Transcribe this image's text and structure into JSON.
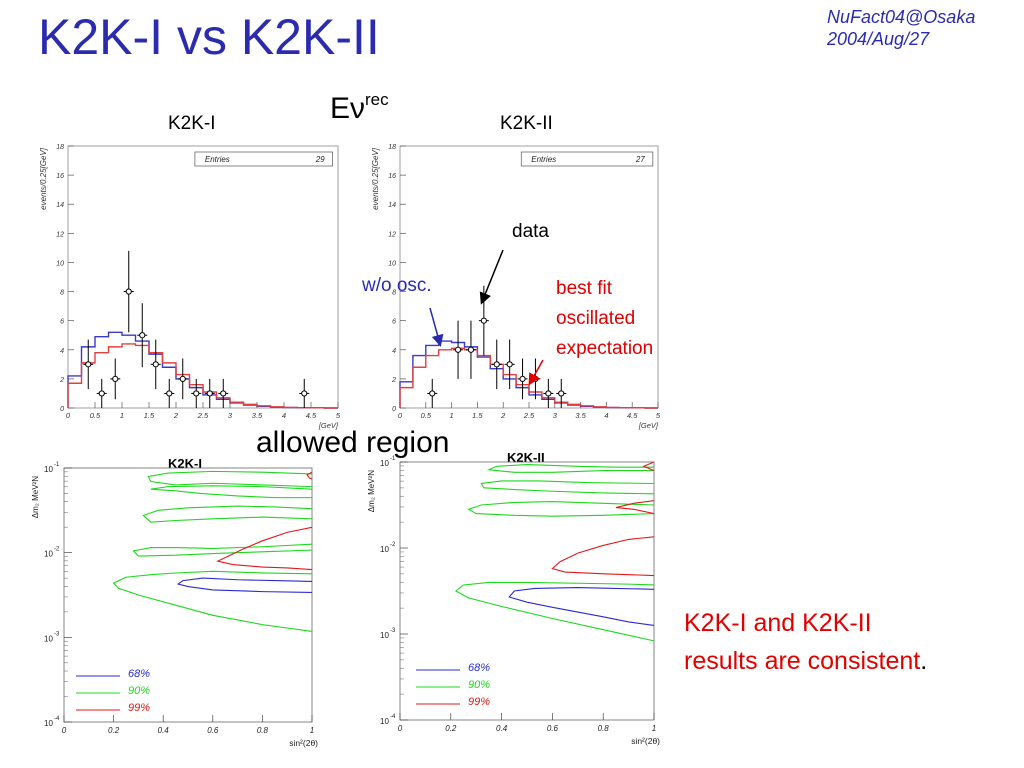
{
  "slide": {
    "title": "K2K-I vs K2K-II",
    "conference": "NuFact04@Osaka",
    "date": "2004/Aug/27",
    "energy_label": "Eν",
    "energy_sup": "rec",
    "allowed_region_label": "allowed region",
    "annotations": {
      "data": "data",
      "wo_osc": "w/o osc.",
      "best_fit_lines": [
        "best fit",
        "oscillated",
        "expectation"
      ]
    },
    "conclusion_lines": [
      "K2K-I and K2K-II",
      "results are consistent"
    ],
    "conclusion_end": "."
  },
  "colors": {
    "title": "#2b2bb0",
    "no_osc": "#3a3ac8",
    "best_fit": "#e04040",
    "c68": "#2a2ad0",
    "c90": "#1ed81e",
    "c99": "#e01a1a",
    "conclusion": "#e00000"
  },
  "chart_data": [
    {
      "type": "line",
      "panel": "K2K-I",
      "title": "K2K-I",
      "xlabel": "[GeV]",
      "ylabel": "events/0.25[GeV]",
      "xlim": [
        0,
        5
      ],
      "ylim": [
        0,
        18
      ],
      "xticks": [
        "0",
        "0.5",
        "1",
        "1.5",
        "2",
        "2.5",
        "3",
        "3.5",
        "4",
        "4.5",
        "5"
      ],
      "yticks": [
        "0",
        "2",
        "4",
        "6",
        "8",
        "10",
        "12",
        "14",
        "16",
        "18"
      ],
      "stat_label": "Entries",
      "stat_value": "29",
      "bin_edges": [
        0,
        0.25,
        0.5,
        0.75,
        1,
        1.25,
        1.5,
        1.75,
        2,
        2.25,
        2.5,
        2.75,
        3,
        3.25,
        3.5,
        3.75,
        4,
        4.25,
        4.5,
        4.75,
        5
      ],
      "series": [
        {
          "role": "no_osc",
          "values": [
            2.2,
            4.2,
            4.9,
            5.2,
            5.0,
            4.6,
            3.7,
            2.8,
            2.0,
            1.4,
            0.9,
            0.6,
            0.35,
            0.2,
            0.12,
            0.06,
            0.03,
            0.02,
            0.01,
            0.0
          ]
        },
        {
          "role": "best_fit",
          "values": [
            1.7,
            3.1,
            3.8,
            4.2,
            4.4,
            4.3,
            3.8,
            3.1,
            2.3,
            1.6,
            1.1,
            0.7,
            0.4,
            0.25,
            0.15,
            0.08,
            0.04,
            0.02,
            0.01,
            0.0
          ]
        }
      ],
      "data_points": [
        {
          "x": 0.375,
          "y": 3,
          "err": 1.7
        },
        {
          "x": 0.625,
          "y": 1,
          "err": 1.0
        },
        {
          "x": 0.875,
          "y": 2,
          "err": 1.4
        },
        {
          "x": 1.125,
          "y": 8,
          "err": 2.8
        },
        {
          "x": 1.375,
          "y": 5,
          "err": 2.2
        },
        {
          "x": 1.625,
          "y": 3,
          "err": 1.7
        },
        {
          "x": 1.875,
          "y": 1,
          "err": 1.0
        },
        {
          "x": 2.125,
          "y": 2,
          "err": 1.4
        },
        {
          "x": 2.375,
          "y": 1,
          "err": 1.0
        },
        {
          "x": 2.625,
          "y": 1,
          "err": 1.0
        },
        {
          "x": 2.875,
          "y": 1,
          "err": 1.0
        },
        {
          "x": 4.375,
          "y": 1,
          "err": 1.0
        }
      ]
    },
    {
      "type": "line",
      "panel": "K2K-II",
      "title": "K2K-II",
      "xlabel": "[GeV]",
      "ylabel": "events/0.25[GeV]",
      "xlim": [
        0,
        5
      ],
      "ylim": [
        0,
        18
      ],
      "xticks": [
        "0",
        "0.5",
        "1",
        "1.5",
        "2",
        "2.5",
        "3",
        "3.5",
        "4",
        "4.5",
        "5"
      ],
      "yticks": [
        "0",
        "2",
        "4",
        "6",
        "8",
        "10",
        "12",
        "14",
        "16",
        "18"
      ],
      "stat_label": "Entries",
      "stat_value": "27",
      "bin_edges": [
        0,
        0.25,
        0.5,
        0.75,
        1,
        1.25,
        1.5,
        1.75,
        2,
        2.25,
        2.5,
        2.75,
        3,
        3.25,
        3.5,
        3.75,
        4,
        4.25,
        4.5,
        4.75,
        5
      ],
      "series": [
        {
          "role": "no_osc",
          "values": [
            1.8,
            3.6,
            4.3,
            4.6,
            4.5,
            4.2,
            3.5,
            2.7,
            2.0,
            1.4,
            0.9,
            0.6,
            0.35,
            0.2,
            0.12,
            0.06,
            0.03,
            0.02,
            0.01,
            0.0
          ]
        },
        {
          "role": "best_fit",
          "values": [
            1.4,
            2.8,
            3.6,
            4.0,
            4.1,
            4.0,
            3.6,
            3.0,
            2.3,
            1.6,
            1.1,
            0.7,
            0.4,
            0.25,
            0.15,
            0.08,
            0.04,
            0.02,
            0.01,
            0.0
          ]
        }
      ],
      "data_points": [
        {
          "x": 0.625,
          "y": 1,
          "err": 1.0
        },
        {
          "x": 1.125,
          "y": 4,
          "err": 2.0
        },
        {
          "x": 1.375,
          "y": 4,
          "err": 2.0
        },
        {
          "x": 1.625,
          "y": 6,
          "err": 2.4
        },
        {
          "x": 1.875,
          "y": 3,
          "err": 1.7
        },
        {
          "x": 2.125,
          "y": 3,
          "err": 1.7
        },
        {
          "x": 2.375,
          "y": 2,
          "err": 1.4
        },
        {
          "x": 2.625,
          "y": 2,
          "err": 1.4
        },
        {
          "x": 2.875,
          "y": 1,
          "err": 1.0
        },
        {
          "x": 3.125,
          "y": 1,
          "err": 1.0
        }
      ]
    },
    {
      "type": "contour",
      "panel": "K2K-I allowed region",
      "title": "K2K-I",
      "xlabel": "sin²(2θ)",
      "ylabel": "Δm₂ MeV²N",
      "xlim": [
        0,
        1
      ],
      "ylim_log10": [
        -4,
        -1
      ],
      "xticks": [
        "0",
        "0.2",
        "0.4",
        "0.6",
        "0.8",
        "1"
      ],
      "yticks": [
        {
          "base": "10",
          "exp": "-1"
        },
        {
          "base": "10",
          "exp": "-2"
        },
        {
          "base": "10",
          "exp": "-3"
        },
        {
          "base": "10",
          "exp": "-4"
        }
      ],
      "legend": [
        {
          "label": "68%",
          "level": "c68"
        },
        {
          "label": "90%",
          "level": "c90"
        },
        {
          "label": "99%",
          "level": "c99"
        }
      ],
      "contours": [
        {
          "level": "c68",
          "points": [
            [
              1.0,
              -2.47
            ],
            [
              0.8,
              -2.46
            ],
            [
              0.6,
              -2.44
            ],
            [
              0.5,
              -2.4
            ],
            [
              0.46,
              -2.37
            ],
            [
              0.48,
              -2.33
            ],
            [
              0.56,
              -2.3
            ],
            [
              0.7,
              -2.32
            ],
            [
              0.85,
              -2.33
            ],
            [
              1.0,
              -2.34
            ]
          ]
        },
        {
          "level": "c90",
          "points": [
            [
              1.0,
              -2.93
            ],
            [
              0.8,
              -2.85
            ],
            [
              0.6,
              -2.74
            ],
            [
              0.45,
              -2.62
            ],
            [
              0.3,
              -2.5
            ],
            [
              0.22,
              -2.42
            ],
            [
              0.2,
              -2.36
            ],
            [
              0.25,
              -2.29
            ],
            [
              0.35,
              -2.26
            ],
            [
              0.45,
              -2.24
            ],
            [
              0.6,
              -2.22
            ],
            [
              0.8,
              -2.24
            ],
            [
              1.0,
              -2.25
            ]
          ]
        },
        {
          "level": "c90",
          "points": [
            [
              1.0,
              -1.97
            ],
            [
              0.8,
              -1.99
            ],
            [
              0.6,
              -2.01
            ],
            [
              0.45,
              -2.03
            ],
            [
              0.3,
              -2.04
            ],
            [
              0.28,
              -1.98
            ],
            [
              0.35,
              -1.94
            ],
            [
              0.45,
              -1.94
            ],
            [
              0.6,
              -1.95
            ],
            [
              0.8,
              -1.93
            ],
            [
              1.0,
              -1.9
            ]
          ]
        },
        {
          "level": "c90",
          "points": [
            [
              1.0,
              -1.6
            ],
            [
              0.8,
              -1.58
            ],
            [
              0.6,
              -1.6
            ],
            [
              0.45,
              -1.62
            ],
            [
              0.35,
              -1.64
            ],
            [
              0.32,
              -1.56
            ],
            [
              0.38,
              -1.5
            ],
            [
              0.5,
              -1.47
            ],
            [
              0.7,
              -1.45
            ],
            [
              0.85,
              -1.46
            ],
            [
              1.0,
              -1.48
            ]
          ]
        },
        {
          "level": "c90",
          "points": [
            [
              1.0,
              -1.22
            ],
            [
              0.8,
              -1.2
            ],
            [
              0.6,
              -1.18
            ],
            [
              0.45,
              -1.2
            ],
            [
              0.35,
              -1.16
            ],
            [
              0.34,
              -1.1
            ],
            [
              0.42,
              -1.06
            ],
            [
              0.6,
              -1.04
            ],
            [
              0.8,
              -1.05
            ],
            [
              1.0,
              -1.07
            ]
          ]
        },
        {
          "level": "c90",
          "points": [
            [
              1.0,
              -1.35
            ],
            [
              0.85,
              -1.35
            ],
            [
              0.7,
              -1.33
            ],
            [
              0.55,
              -1.3
            ],
            [
              0.45,
              -1.27
            ],
            [
              0.35,
              -1.25
            ],
            [
              0.42,
              -1.22
            ],
            [
              0.6,
              -1.21
            ],
            [
              0.8,
              -1.22
            ],
            [
              1.0,
              -1.25
            ]
          ]
        },
        {
          "level": "c99",
          "points": [
            [
              1.0,
              -1.7
            ],
            [
              0.9,
              -1.76
            ],
            [
              0.8,
              -1.86
            ],
            [
              0.72,
              -1.96
            ],
            [
              0.67,
              -2.03
            ],
            [
              0.62,
              -2.1
            ],
            [
              0.68,
              -2.14
            ],
            [
              0.8,
              -2.17
            ],
            [
              0.9,
              -2.18
            ],
            [
              1.0,
              -2.2
            ]
          ]
        },
        {
          "level": "c99",
          "points": [
            [
              1.0,
              -1.05
            ],
            [
              0.98,
              -1.08
            ],
            [
              0.99,
              -1.12
            ],
            [
              1.0,
              -1.13
            ]
          ]
        }
      ]
    },
    {
      "type": "contour",
      "panel": "K2K-II allowed region",
      "title": "K2K-II",
      "xlabel": "sin²(2θ)",
      "ylabel": "Δm₂ MeV²N",
      "xlim": [
        0,
        1
      ],
      "ylim_log10": [
        -4,
        -1
      ],
      "xticks": [
        "0",
        "0.2",
        "0.4",
        "0.6",
        "0.8",
        "1"
      ],
      "yticks": [
        {
          "base": "10",
          "exp": "-1"
        },
        {
          "base": "10",
          "exp": "-2"
        },
        {
          "base": "10",
          "exp": "-3"
        },
        {
          "base": "10",
          "exp": "-4"
        }
      ],
      "legend": [
        {
          "label": "68%",
          "level": "c68"
        },
        {
          "label": "90%",
          "level": "c90"
        },
        {
          "label": "99%",
          "level": "c99"
        }
      ],
      "contours": [
        {
          "level": "c68",
          "points": [
            [
              1.0,
              -2.9
            ],
            [
              0.9,
              -2.86
            ],
            [
              0.8,
              -2.8
            ],
            [
              0.6,
              -2.69
            ],
            [
              0.5,
              -2.63
            ],
            [
              0.43,
              -2.57
            ],
            [
              0.45,
              -2.5
            ],
            [
              0.53,
              -2.47
            ],
            [
              0.7,
              -2.46
            ],
            [
              0.85,
              -2.47
            ],
            [
              1.0,
              -2.48
            ]
          ]
        },
        {
          "level": "c90",
          "points": [
            [
              1.0,
              -3.08
            ],
            [
              0.8,
              -2.95
            ],
            [
              0.6,
              -2.82
            ],
            [
              0.4,
              -2.68
            ],
            [
              0.27,
              -2.58
            ],
            [
              0.22,
              -2.5
            ],
            [
              0.25,
              -2.43
            ],
            [
              0.35,
              -2.4
            ],
            [
              0.5,
              -2.4
            ],
            [
              0.7,
              -2.41
            ],
            [
              0.9,
              -2.42
            ],
            [
              1.0,
              -2.43
            ]
          ]
        },
        {
          "level": "c90",
          "points": [
            [
              1.0,
              -1.6
            ],
            [
              0.8,
              -1.62
            ],
            [
              0.6,
              -1.63
            ],
            [
              0.45,
              -1.62
            ],
            [
              0.3,
              -1.6
            ],
            [
              0.27,
              -1.55
            ],
            [
              0.32,
              -1.5
            ],
            [
              0.45,
              -1.47
            ],
            [
              0.6,
              -1.46
            ],
            [
              0.8,
              -1.48
            ],
            [
              1.0,
              -1.5
            ]
          ]
        },
        {
          "level": "c90",
          "points": [
            [
              1.0,
              -1.37
            ],
            [
              0.8,
              -1.36
            ],
            [
              0.6,
              -1.34
            ],
            [
              0.45,
              -1.32
            ],
            [
              0.33,
              -1.3
            ],
            [
              0.32,
              -1.25
            ],
            [
              0.4,
              -1.22
            ],
            [
              0.55,
              -1.22
            ],
            [
              0.75,
              -1.24
            ],
            [
              1.0,
              -1.25
            ]
          ]
        },
        {
          "level": "c90",
          "points": [
            [
              1.0,
              -1.1
            ],
            [
              0.8,
              -1.1
            ],
            [
              0.6,
              -1.12
            ],
            [
              0.45,
              -1.12
            ],
            [
              0.35,
              -1.09
            ],
            [
              0.38,
              -1.05
            ],
            [
              0.5,
              -1.03
            ],
            [
              0.7,
              -1.05
            ],
            [
              0.85,
              -1.06
            ],
            [
              1.0,
              -1.06
            ]
          ]
        },
        {
          "level": "c99",
          "points": [
            [
              1.0,
              -2.32
            ],
            [
              0.8,
              -2.3
            ],
            [
              0.65,
              -2.28
            ],
            [
              0.6,
              -2.24
            ],
            [
              0.63,
              -2.16
            ],
            [
              0.7,
              -2.06
            ],
            [
              0.8,
              -1.97
            ],
            [
              0.9,
              -1.9
            ],
            [
              1.0,
              -1.87
            ]
          ]
        },
        {
          "level": "c99",
          "points": [
            [
              1.0,
              -1.6
            ],
            [
              0.92,
              -1.55
            ],
            [
              0.85,
              -1.53
            ],
            [
              0.92,
              -1.48
            ],
            [
              1.0,
              -1.45
            ]
          ]
        },
        {
          "level": "c99",
          "points": [
            [
              1.0,
              -1.1
            ],
            [
              0.96,
              -1.05
            ],
            [
              1.0,
              -1.0
            ]
          ]
        }
      ]
    }
  ]
}
